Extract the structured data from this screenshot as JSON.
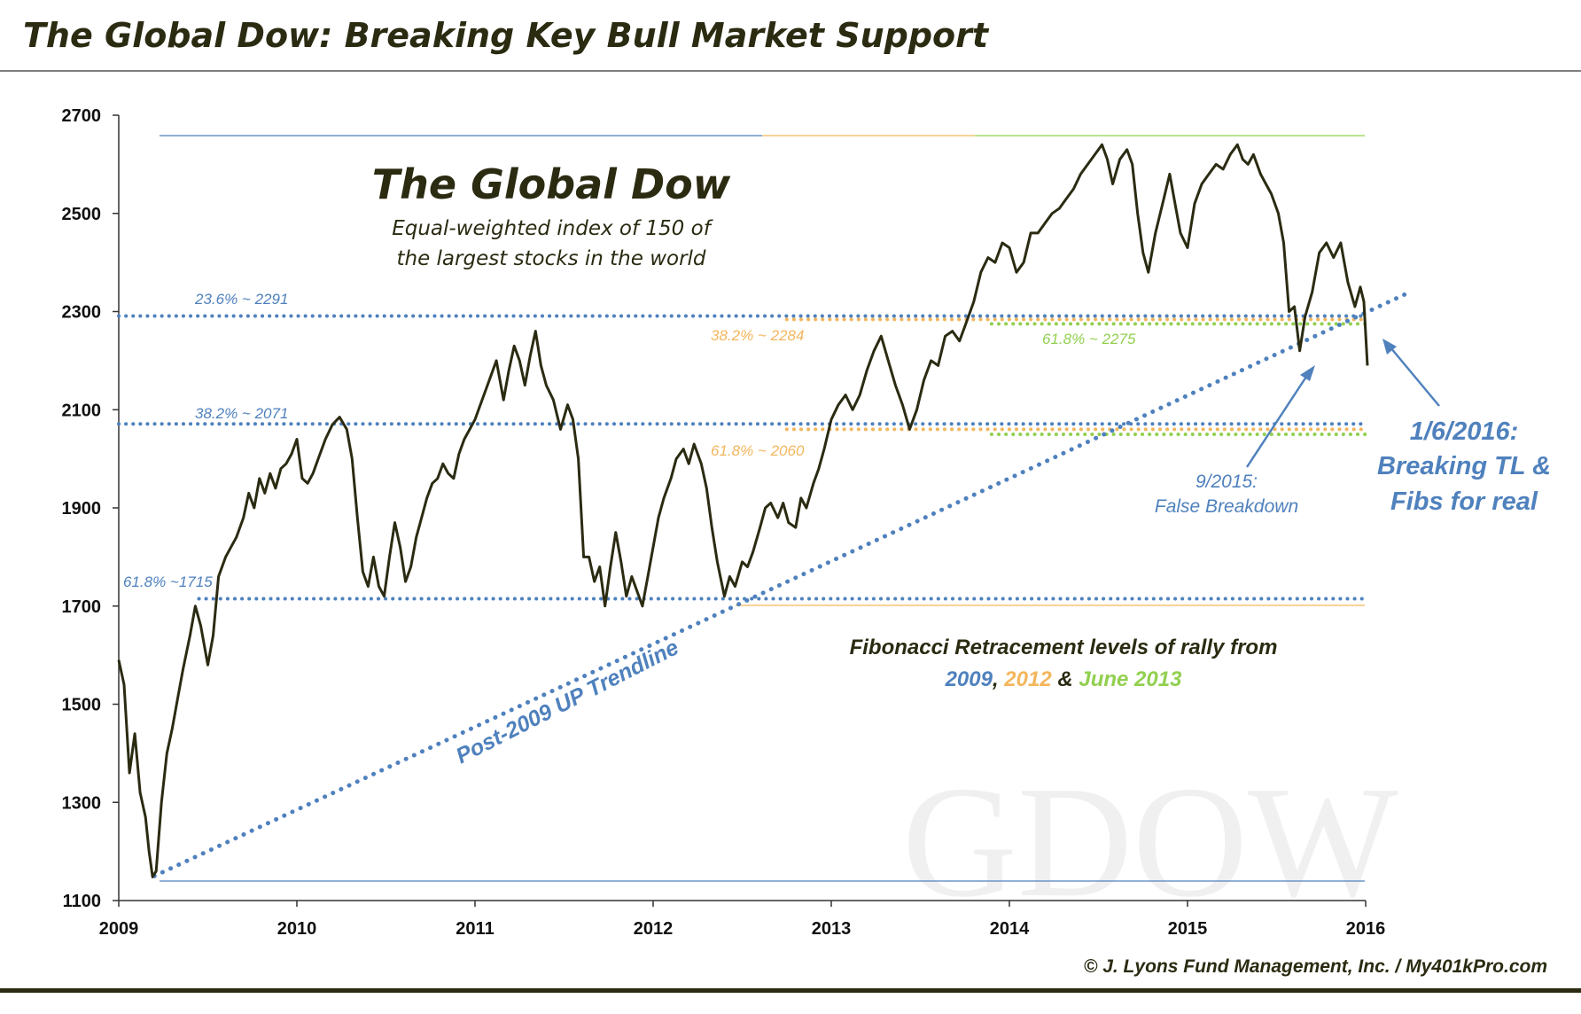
{
  "header": {
    "title": "The Global Dow: Breaking Key Bull Market Support",
    "copyright": "© J. Lyons Fund Management, Inc. / My401kPro.com"
  },
  "chart_data": {
    "type": "line",
    "ylim": [
      1100,
      2700
    ],
    "yticks": [
      1100,
      1300,
      1500,
      1700,
      1900,
      2100,
      2300,
      2500,
      2700
    ],
    "xlim": [
      2009.0,
      2016.0
    ],
    "xticks": [
      2009,
      2010,
      2011,
      2012,
      2013,
      2014,
      2015,
      2016
    ],
    "grid": false,
    "inset_title": "The Global Dow",
    "inset_subtitle_1": "Equal-weighted index of 150 of",
    "inset_subtitle_2": "the largest stocks in the world",
    "watermark": "GDOW",
    "series": [
      {
        "color": "#2b2b12",
        "points": [
          [
            2009.0,
            1590
          ],
          [
            2009.03,
            1540
          ],
          [
            2009.06,
            1360
          ],
          [
            2009.09,
            1440
          ],
          [
            2009.12,
            1320
          ],
          [
            2009.15,
            1270
          ],
          [
            2009.17,
            1200
          ],
          [
            2009.19,
            1148
          ],
          [
            2009.21,
            1160
          ],
          [
            2009.24,
            1300
          ],
          [
            2009.27,
            1400
          ],
          [
            2009.3,
            1450
          ],
          [
            2009.33,
            1510
          ],
          [
            2009.36,
            1570
          ],
          [
            2009.4,
            1640
          ],
          [
            2009.43,
            1700
          ],
          [
            2009.46,
            1660
          ],
          [
            2009.5,
            1580
          ],
          [
            2009.53,
            1640
          ],
          [
            2009.56,
            1760
          ],
          [
            2009.6,
            1800
          ],
          [
            2009.63,
            1820
          ],
          [
            2009.66,
            1840
          ],
          [
            2009.7,
            1880
          ],
          [
            2009.73,
            1930
          ],
          [
            2009.76,
            1900
          ],
          [
            2009.79,
            1960
          ],
          [
            2009.82,
            1930
          ],
          [
            2009.85,
            1970
          ],
          [
            2009.88,
            1940
          ],
          [
            2009.91,
            1980
          ],
          [
            2009.94,
            1990
          ],
          [
            2009.97,
            2010
          ],
          [
            2010.0,
            2040
          ],
          [
            2010.03,
            1960
          ],
          [
            2010.06,
            1950
          ],
          [
            2010.09,
            1970
          ],
          [
            2010.12,
            2000
          ],
          [
            2010.16,
            2040
          ],
          [
            2010.2,
            2070
          ],
          [
            2010.24,
            2085
          ],
          [
            2010.28,
            2060
          ],
          [
            2010.31,
            2000
          ],
          [
            2010.34,
            1880
          ],
          [
            2010.37,
            1770
          ],
          [
            2010.4,
            1740
          ],
          [
            2010.43,
            1800
          ],
          [
            2010.46,
            1740
          ],
          [
            2010.49,
            1720
          ],
          [
            2010.52,
            1800
          ],
          [
            2010.55,
            1870
          ],
          [
            2010.58,
            1820
          ],
          [
            2010.61,
            1750
          ],
          [
            2010.64,
            1780
          ],
          [
            2010.67,
            1840
          ],
          [
            2010.7,
            1880
          ],
          [
            2010.73,
            1920
          ],
          [
            2010.76,
            1950
          ],
          [
            2010.79,
            1960
          ],
          [
            2010.82,
            1990
          ],
          [
            2010.85,
            1970
          ],
          [
            2010.88,
            1960
          ],
          [
            2010.91,
            2010
          ],
          [
            2010.94,
            2040
          ],
          [
            2010.97,
            2060
          ],
          [
            2011.0,
            2080
          ],
          [
            2011.04,
            2120
          ],
          [
            2011.08,
            2160
          ],
          [
            2011.12,
            2200
          ],
          [
            2011.16,
            2120
          ],
          [
            2011.19,
            2180
          ],
          [
            2011.22,
            2230
          ],
          [
            2011.25,
            2200
          ],
          [
            2011.28,
            2150
          ],
          [
            2011.31,
            2210
          ],
          [
            2011.34,
            2260
          ],
          [
            2011.37,
            2190
          ],
          [
            2011.4,
            2150
          ],
          [
            2011.44,
            2120
          ],
          [
            2011.48,
            2060
          ],
          [
            2011.52,
            2110
          ],
          [
            2011.55,
            2080
          ],
          [
            2011.58,
            2000
          ],
          [
            2011.61,
            1800
          ],
          [
            2011.64,
            1800
          ],
          [
            2011.67,
            1750
          ],
          [
            2011.7,
            1780
          ],
          [
            2011.73,
            1700
          ],
          [
            2011.76,
            1780
          ],
          [
            2011.79,
            1850
          ],
          [
            2011.82,
            1790
          ],
          [
            2011.85,
            1720
          ],
          [
            2011.88,
            1760
          ],
          [
            2011.91,
            1730
          ],
          [
            2011.94,
            1700
          ],
          [
            2011.97,
            1760
          ],
          [
            2012.0,
            1820
          ],
          [
            2012.03,
            1880
          ],
          [
            2012.06,
            1920
          ],
          [
            2012.1,
            1960
          ],
          [
            2012.13,
            2000
          ],
          [
            2012.17,
            2020
          ],
          [
            2012.2,
            1990
          ],
          [
            2012.23,
            2030
          ],
          [
            2012.27,
            1990
          ],
          [
            2012.3,
            1940
          ],
          [
            2012.33,
            1860
          ],
          [
            2012.36,
            1790
          ],
          [
            2012.4,
            1720
          ],
          [
            2012.43,
            1760
          ],
          [
            2012.46,
            1740
          ],
          [
            2012.5,
            1790
          ],
          [
            2012.53,
            1780
          ],
          [
            2012.56,
            1810
          ],
          [
            2012.6,
            1860
          ],
          [
            2012.63,
            1900
          ],
          [
            2012.66,
            1910
          ],
          [
            2012.7,
            1880
          ],
          [
            2012.73,
            1910
          ],
          [
            2012.76,
            1870
          ],
          [
            2012.8,
            1860
          ],
          [
            2012.83,
            1920
          ],
          [
            2012.86,
            1900
          ],
          [
            2012.9,
            1950
          ],
          [
            2012.93,
            1980
          ],
          [
            2012.96,
            2020
          ],
          [
            2013.0,
            2080
          ],
          [
            2013.04,
            2110
          ],
          [
            2013.08,
            2130
          ],
          [
            2013.12,
            2100
          ],
          [
            2013.16,
            2130
          ],
          [
            2013.2,
            2180
          ],
          [
            2013.24,
            2220
          ],
          [
            2013.28,
            2250
          ],
          [
            2013.32,
            2200
          ],
          [
            2013.36,
            2150
          ],
          [
            2013.4,
            2110
          ],
          [
            2013.44,
            2060
          ],
          [
            2013.48,
            2100
          ],
          [
            2013.52,
            2160
          ],
          [
            2013.56,
            2200
          ],
          [
            2013.6,
            2190
          ],
          [
            2013.64,
            2250
          ],
          [
            2013.68,
            2260
          ],
          [
            2013.72,
            2240
          ],
          [
            2013.76,
            2280
          ],
          [
            2013.8,
            2320
          ],
          [
            2013.84,
            2380
          ],
          [
            2013.88,
            2410
          ],
          [
            2013.92,
            2400
          ],
          [
            2013.96,
            2440
          ],
          [
            2014.0,
            2430
          ],
          [
            2014.04,
            2380
          ],
          [
            2014.08,
            2400
          ],
          [
            2014.12,
            2460
          ],
          [
            2014.16,
            2460
          ],
          [
            2014.2,
            2480
          ],
          [
            2014.24,
            2500
          ],
          [
            2014.28,
            2510
          ],
          [
            2014.32,
            2530
          ],
          [
            2014.36,
            2550
          ],
          [
            2014.4,
            2580
          ],
          [
            2014.44,
            2600
          ],
          [
            2014.48,
            2620
          ],
          [
            2014.52,
            2640
          ],
          [
            2014.55,
            2610
          ],
          [
            2014.58,
            2560
          ],
          [
            2014.62,
            2610
          ],
          [
            2014.66,
            2630
          ],
          [
            2014.69,
            2600
          ],
          [
            2014.72,
            2500
          ],
          [
            2014.75,
            2420
          ],
          [
            2014.78,
            2380
          ],
          [
            2014.82,
            2460
          ],
          [
            2014.86,
            2520
          ],
          [
            2014.9,
            2580
          ],
          [
            2014.93,
            2520
          ],
          [
            2014.96,
            2460
          ],
          [
            2015.0,
            2430
          ],
          [
            2015.04,
            2520
          ],
          [
            2015.08,
            2560
          ],
          [
            2015.12,
            2580
          ],
          [
            2015.16,
            2600
          ],
          [
            2015.2,
            2590
          ],
          [
            2015.24,
            2620
          ],
          [
            2015.28,
            2640
          ],
          [
            2015.31,
            2610
          ],
          [
            2015.34,
            2600
          ],
          [
            2015.37,
            2620
          ],
          [
            2015.41,
            2580
          ],
          [
            2015.44,
            2560
          ],
          [
            2015.47,
            2540
          ],
          [
            2015.51,
            2500
          ],
          [
            2015.54,
            2440
          ],
          [
            2015.57,
            2300
          ],
          [
            2015.6,
            2310
          ],
          [
            2015.63,
            2220
          ],
          [
            2015.66,
            2290
          ],
          [
            2015.7,
            2340
          ],
          [
            2015.74,
            2420
          ],
          [
            2015.78,
            2440
          ],
          [
            2015.82,
            2410
          ],
          [
            2015.86,
            2440
          ],
          [
            2015.9,
            2360
          ],
          [
            2015.94,
            2310
          ],
          [
            2015.97,
            2350
          ],
          [
            2015.99,
            2320
          ],
          [
            2016.01,
            2190
          ]
        ]
      }
    ],
    "fib_levels": [
      {
        "label": "23.6% ~ 2291",
        "value": 2291,
        "color": "#4f81bd",
        "from": 2009.0
      },
      {
        "label": "38.2% ~ 2071",
        "value": 2071,
        "color": "#4f81bd",
        "from": 2009.0
      },
      {
        "label": "61.8% ~1715",
        "value": 1715,
        "color": "#4f81bd",
        "from": 2009.45
      },
      {
        "label": "38.2% ~ 2284",
        "value": 2284,
        "color": "#f4b65d",
        "from": 2012.75
      },
      {
        "label": "61.8% ~ 2060",
        "value": 2060,
        "color": "#f4b65d",
        "from": 2012.75
      },
      {
        "label": "61.8% ~ 2275",
        "value": 2275,
        "color": "#92d050",
        "from": 2013.9
      },
      {
        "label": "",
        "value": 2050,
        "color": "#92d050",
        "from": 2013.9
      }
    ],
    "trendline": {
      "label": "Post-2009 UP Trendline",
      "start": [
        2009.2,
        1150
      ],
      "end": [
        2016.25,
        2340
      ],
      "color": "#4f81bd"
    },
    "annotation_false": {
      "line1": "9/2015:",
      "line2": "False Breakdown"
    },
    "annotation_break": {
      "line1": "1/6/2016:",
      "line2": "Breaking TL &",
      "line3": "Fibs for real"
    },
    "fib_caption": {
      "line1": "Fibonacci Retracement levels of rally from",
      "y2009": "2009",
      "sep1": ", ",
      "y2012": "2012",
      "sep2": " & ",
      "y2013": "June 2013"
    }
  }
}
